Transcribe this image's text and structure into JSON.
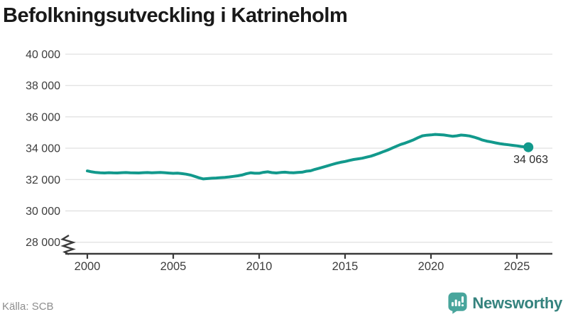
{
  "title": "Befolkningsutveckling i Katrineholm",
  "source": "Källa: SCB",
  "brand": {
    "name": "Newsworthy"
  },
  "colors": {
    "line": "#12998c",
    "dot": "#12998c",
    "grid": "#e3e3e3",
    "axis": "#3a3a3a",
    "tick_label": "#3d3d3d",
    "title": "#191919",
    "source": "#8d8d8d",
    "end_label": "#2b2b2b",
    "brand_text": "#35837e",
    "brand_icon": "#48a59c"
  },
  "chart_data": {
    "type": "line",
    "title": "Befolkningsutveckling i Katrineholm",
    "xlabel": "",
    "ylabel": "",
    "legend": "none",
    "grid": "horizontal",
    "axis_break_below": 28000,
    "xlim": [
      1999.5,
      2027
    ],
    "ylim": [
      28000,
      40000
    ],
    "x_ticks": [
      {
        "value": 2000,
        "label": "2000"
      },
      {
        "value": 2005,
        "label": "2005"
      },
      {
        "value": 2010,
        "label": "2010"
      },
      {
        "value": 2015,
        "label": "2015"
      },
      {
        "value": 2020,
        "label": "2020"
      },
      {
        "value": 2025,
        "label": "2025"
      }
    ],
    "y_ticks": [
      {
        "value": 40000,
        "label": "40 000"
      },
      {
        "value": 38000,
        "label": "38 000"
      },
      {
        "value": 36000,
        "label": "36 000"
      },
      {
        "value": 34000,
        "label": "34 000"
      },
      {
        "value": 32000,
        "label": "32 000"
      },
      {
        "value": 30000,
        "label": "30 000"
      },
      {
        "value": 28000,
        "label": "28 000"
      }
    ],
    "series_name": "Befolkning",
    "end_label": "34 063",
    "end_value": 34063,
    "points": [
      [
        2000,
        32550
      ],
      [
        2000.25,
        32490
      ],
      [
        2000.5,
        32450
      ],
      [
        2000.75,
        32430
      ],
      [
        2001,
        32420
      ],
      [
        2001.25,
        32435
      ],
      [
        2001.5,
        32425
      ],
      [
        2001.75,
        32420
      ],
      [
        2002,
        32435
      ],
      [
        2002.25,
        32445
      ],
      [
        2002.5,
        32430
      ],
      [
        2002.75,
        32425
      ],
      [
        2003,
        32420
      ],
      [
        2003.25,
        32435
      ],
      [
        2003.5,
        32445
      ],
      [
        2003.75,
        32430
      ],
      [
        2004,
        32440
      ],
      [
        2004.25,
        32455
      ],
      [
        2004.5,
        32435
      ],
      [
        2004.75,
        32415
      ],
      [
        2005,
        32395
      ],
      [
        2005.25,
        32405
      ],
      [
        2005.5,
        32380
      ],
      [
        2005.75,
        32340
      ],
      [
        2006,
        32290
      ],
      [
        2006.25,
        32200
      ],
      [
        2006.5,
        32110
      ],
      [
        2006.75,
        32040
      ],
      [
        2007,
        32060
      ],
      [
        2007.25,
        32085
      ],
      [
        2007.5,
        32100
      ],
      [
        2007.75,
        32120
      ],
      [
        2008,
        32140
      ],
      [
        2008.25,
        32165
      ],
      [
        2008.5,
        32200
      ],
      [
        2008.75,
        32240
      ],
      [
        2009,
        32290
      ],
      [
        2009.25,
        32370
      ],
      [
        2009.5,
        32430
      ],
      [
        2009.75,
        32400
      ],
      [
        2010,
        32400
      ],
      [
        2010.25,
        32460
      ],
      [
        2010.5,
        32490
      ],
      [
        2010.75,
        32440
      ],
      [
        2011,
        32420
      ],
      [
        2011.25,
        32450
      ],
      [
        2011.5,
        32470
      ],
      [
        2011.75,
        32440
      ],
      [
        2012,
        32430
      ],
      [
        2012.25,
        32450
      ],
      [
        2012.5,
        32470
      ],
      [
        2012.75,
        32530
      ],
      [
        2013,
        32560
      ],
      [
        2013.25,
        32650
      ],
      [
        2013.5,
        32720
      ],
      [
        2013.75,
        32800
      ],
      [
        2014,
        32880
      ],
      [
        2014.25,
        32960
      ],
      [
        2014.5,
        33040
      ],
      [
        2014.75,
        33100
      ],
      [
        2015,
        33150
      ],
      [
        2015.25,
        33220
      ],
      [
        2015.5,
        33280
      ],
      [
        2015.75,
        33320
      ],
      [
        2016,
        33360
      ],
      [
        2016.25,
        33430
      ],
      [
        2016.5,
        33490
      ],
      [
        2016.75,
        33580
      ],
      [
        2017,
        33680
      ],
      [
        2017.25,
        33790
      ],
      [
        2017.5,
        33890
      ],
      [
        2017.75,
        34010
      ],
      [
        2018,
        34130
      ],
      [
        2018.25,
        34240
      ],
      [
        2018.5,
        34330
      ],
      [
        2018.75,
        34430
      ],
      [
        2019,
        34540
      ],
      [
        2019.25,
        34670
      ],
      [
        2019.5,
        34790
      ],
      [
        2019.75,
        34830
      ],
      [
        2020,
        34850
      ],
      [
        2020.25,
        34880
      ],
      [
        2020.5,
        34860
      ],
      [
        2020.75,
        34845
      ],
      [
        2021,
        34805
      ],
      [
        2021.25,
        34760
      ],
      [
        2021.5,
        34790
      ],
      [
        2021.75,
        34840
      ],
      [
        2022,
        34815
      ],
      [
        2022.25,
        34780
      ],
      [
        2022.5,
        34710
      ],
      [
        2022.75,
        34620
      ],
      [
        2023,
        34520
      ],
      [
        2023.25,
        34450
      ],
      [
        2023.5,
        34400
      ],
      [
        2023.75,
        34340
      ],
      [
        2024,
        34290
      ],
      [
        2024.25,
        34250
      ],
      [
        2024.5,
        34220
      ],
      [
        2024.75,
        34185
      ],
      [
        2025,
        34150
      ],
      [
        2025.25,
        34110
      ],
      [
        2025.67,
        34063
      ]
    ]
  }
}
